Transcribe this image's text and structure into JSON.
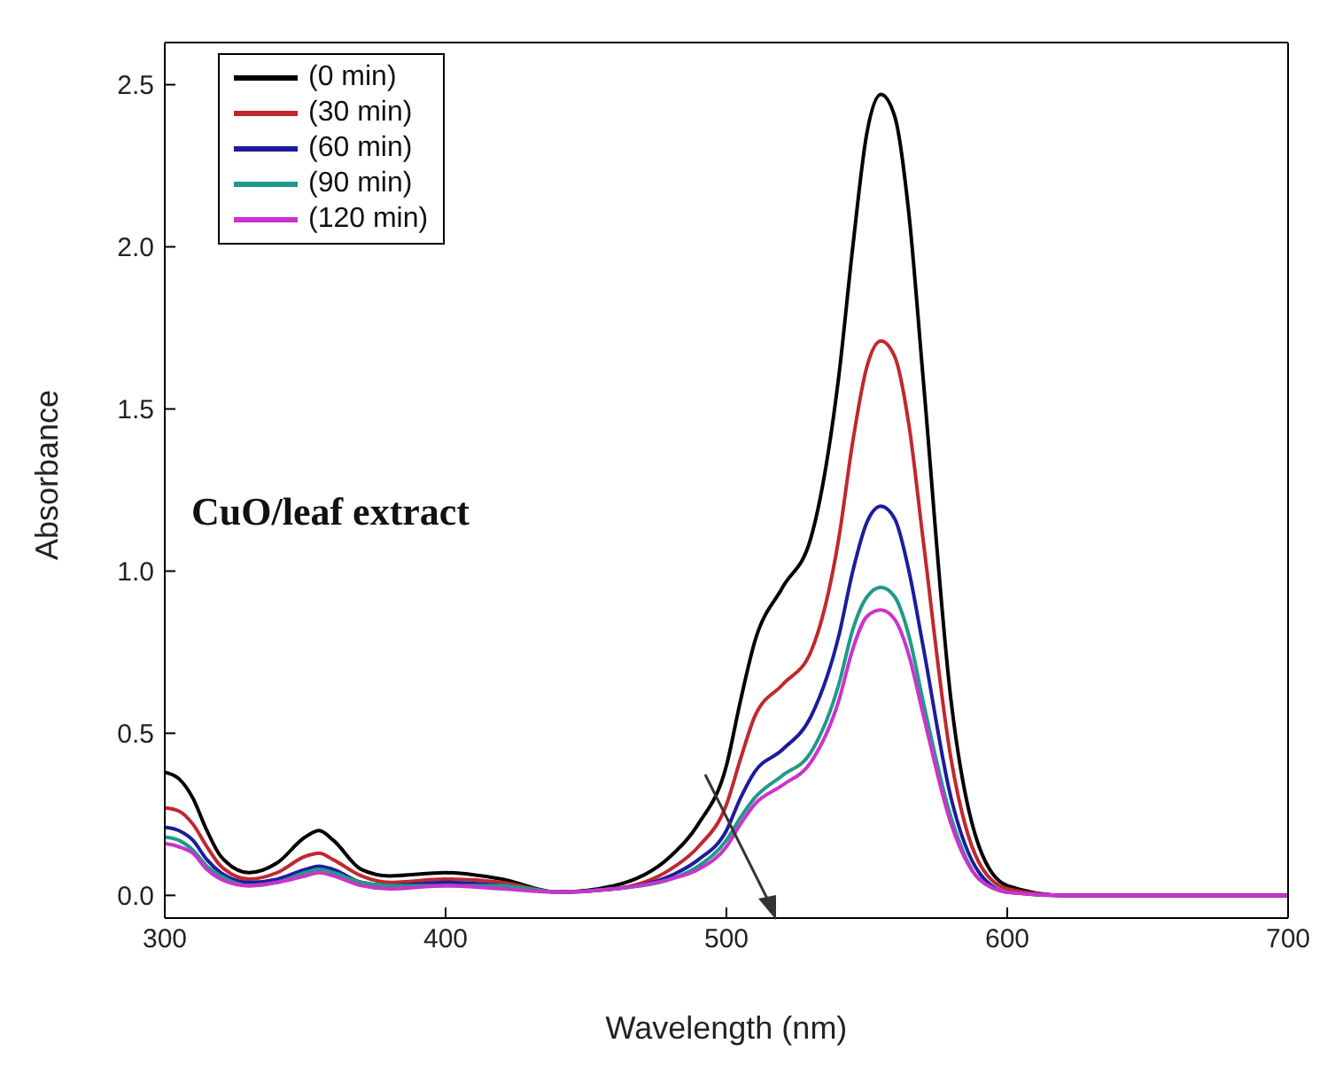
{
  "chart_data": {
    "type": "line",
    "xlabel": "Wavelength (nm)",
    "ylabel": "Absorbance",
    "annotations": [
      "CuO/leaf extract"
    ],
    "x": [
      300,
      305,
      310,
      315,
      320,
      330,
      340,
      350,
      355,
      360,
      370,
      380,
      400,
      420,
      440,
      460,
      480,
      490,
      500,
      505,
      510,
      520,
      530,
      540,
      545,
      550,
      555,
      560,
      565,
      570,
      580,
      590,
      600,
      620,
      700
    ],
    "series": [
      {
        "name": "(0 min)",
        "color": "#000000",
        "values": [
          0.38,
          0.36,
          0.3,
          0.2,
          0.12,
          0.07,
          0.1,
          0.18,
          0.2,
          0.17,
          0.08,
          0.06,
          0.07,
          0.05,
          0.01,
          0.03,
          0.12,
          0.22,
          0.4,
          0.6,
          0.78,
          0.95,
          1.1,
          1.6,
          2.0,
          2.35,
          2.47,
          2.4,
          2.1,
          1.6,
          0.6,
          0.15,
          0.03,
          0,
          0
        ]
      },
      {
        "name": "(30 min)",
        "color": "#c0282d",
        "values": [
          0.27,
          0.26,
          0.22,
          0.15,
          0.09,
          0.05,
          0.07,
          0.12,
          0.13,
          0.11,
          0.06,
          0.04,
          0.05,
          0.04,
          0.01,
          0.02,
          0.08,
          0.15,
          0.28,
          0.42,
          0.55,
          0.65,
          0.75,
          1.1,
          1.4,
          1.63,
          1.71,
          1.66,
          1.45,
          1.1,
          0.42,
          0.1,
          0.02,
          0,
          0
        ]
      },
      {
        "name": "(60 min)",
        "color": "#1c1c9c",
        "values": [
          0.21,
          0.2,
          0.17,
          0.11,
          0.07,
          0.04,
          0.05,
          0.08,
          0.09,
          0.08,
          0.04,
          0.03,
          0.04,
          0.03,
          0.01,
          0.02,
          0.06,
          0.11,
          0.2,
          0.3,
          0.38,
          0.45,
          0.55,
          0.8,
          1.0,
          1.15,
          1.2,
          1.16,
          1.0,
          0.77,
          0.3,
          0.07,
          0.01,
          0,
          0
        ]
      },
      {
        "name": "(90 min)",
        "color": "#1f9a8a",
        "values": [
          0.18,
          0.17,
          0.14,
          0.09,
          0.06,
          0.03,
          0.04,
          0.07,
          0.08,
          0.07,
          0.04,
          0.03,
          0.03,
          0.03,
          0.01,
          0.02,
          0.05,
          0.09,
          0.17,
          0.24,
          0.3,
          0.37,
          0.44,
          0.65,
          0.82,
          0.92,
          0.95,
          0.92,
          0.8,
          0.6,
          0.24,
          0.05,
          0.01,
          null,
          null
        ]
      },
      {
        "name": "(120 min)",
        "color": "#cc33cc",
        "values": [
          0.16,
          0.15,
          0.13,
          0.08,
          0.05,
          0.03,
          0.04,
          0.06,
          0.07,
          0.06,
          0.03,
          0.02,
          0.03,
          0.02,
          0.01,
          0.02,
          0.05,
          0.08,
          0.15,
          0.22,
          0.28,
          0.34,
          0.41,
          0.6,
          0.76,
          0.86,
          0.88,
          0.85,
          0.74,
          0.56,
          0.22,
          0.05,
          0.01,
          0,
          0
        ]
      }
    ],
    "xlim": [
      300,
      700
    ],
    "xticks": [
      300,
      400,
      500,
      600,
      700
    ],
    "ylim": [
      -0.07,
      2.63
    ],
    "yticks": [
      {
        "value": 0,
        "label": "0.0"
      },
      {
        "value": 0.5,
        "label": "0.5"
      },
      {
        "value": 1,
        "label": "1.0"
      },
      {
        "value": 1.5,
        "label": "1.5"
      },
      {
        "value": 2,
        "label": "2.0"
      },
      {
        "value": 2.5,
        "label": "2.5"
      }
    ],
    "grid": false,
    "legend": "top left",
    "marker": "none",
    "line_style": "solid"
  }
}
